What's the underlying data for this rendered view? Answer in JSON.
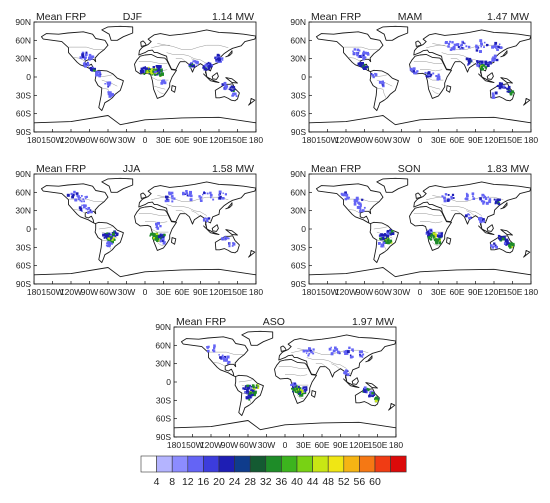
{
  "figure": {
    "panels": [
      {
        "key": "p1",
        "left_title": "Mean FRP",
        "season": "DJF",
        "value": "1.14 MW"
      },
      {
        "key": "p2",
        "left_title": "Mean FRP",
        "season": "MAM",
        "value": "1.47 MW"
      },
      {
        "key": "p3",
        "left_title": "Mean FRP",
        "season": "JJA",
        "value": "1.58 MW"
      },
      {
        "key": "p4",
        "left_title": "Mean FRP",
        "season": "SON",
        "value": "1.83 MW"
      },
      {
        "key": "p5",
        "left_title": "Mean FRP",
        "season": "ASO",
        "value": "1.97 MW"
      }
    ],
    "lat_ticks": [
      "90N",
      "60N",
      "30N",
      "0",
      "30S",
      "60S",
      "90S"
    ],
    "lon_ticks": [
      "180",
      "150W",
      "120W",
      "90W",
      "60W",
      "30W",
      "0",
      "30E",
      "60E",
      "90E",
      "120E",
      "150E",
      "180"
    ],
    "colorbar": {
      "labels": [
        "4",
        "8",
        "12",
        "16",
        "20",
        "24",
        "28",
        "32",
        "36",
        "40",
        "44",
        "48",
        "52",
        "56",
        "60"
      ],
      "colors": [
        "#ffffff",
        "#b4b4ff",
        "#8c8cff",
        "#6464f5",
        "#3c3cdc",
        "#1e1eb4",
        "#0f3c8c",
        "#145a32",
        "#1e8c28",
        "#3cb41e",
        "#78d214",
        "#c8e614",
        "#f0e614",
        "#f5b414",
        "#f57814",
        "#f03c14",
        "#dc0a0a"
      ]
    },
    "map_colors": {
      "coast": "#1a1a1a",
      "border": "#8a8a8a",
      "fire_low": "#6464f5",
      "fire_mid": "#1e1eb4",
      "fire_high": "#1e8c28",
      "fire_peak": "#c8e614"
    }
  }
}
